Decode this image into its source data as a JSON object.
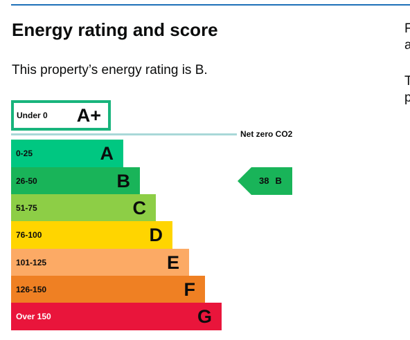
{
  "heading": "Energy rating and score",
  "intro": "This property’s energy rating is B.",
  "side_text": [
    "F",
    "a",
    "T",
    "p"
  ],
  "net_zero_label": "Net zero CO2",
  "current_rating": {
    "score": "38",
    "letter": "B",
    "band_color": "#19b459"
  },
  "bands": [
    {
      "range": "Under 0",
      "letter": "A+",
      "color": "#18b47c",
      "outlined": true
    },
    {
      "range": "0-25",
      "letter": "A",
      "color": "#00c781"
    },
    {
      "range": "26-50",
      "letter": "B",
      "color": "#19b459"
    },
    {
      "range": "51-75",
      "letter": "C",
      "color": "#8dce46"
    },
    {
      "range": "76-100",
      "letter": "D",
      "color": "#ffd500"
    },
    {
      "range": "101-125",
      "letter": "E",
      "color": "#fcaa65"
    },
    {
      "range": "126-150",
      "letter": "F",
      "color": "#ef8023"
    },
    {
      "range": "Over 150",
      "letter": "G",
      "color": "#e9153b"
    }
  ]
}
